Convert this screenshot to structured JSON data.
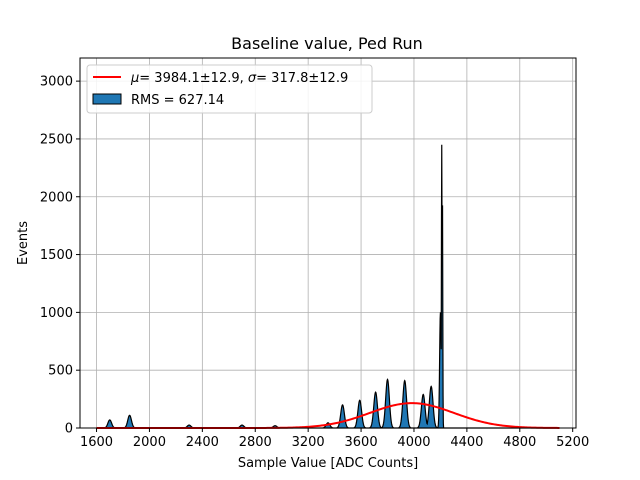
{
  "chart_data": {
    "type": "histogram",
    "title": "Baseline value, Ped Run",
    "xlabel": "Sample Value [ADC Counts]",
    "ylabel": "Events",
    "xlim": [
      1475,
      5225
    ],
    "ylim": [
      0,
      3200
    ],
    "x_ticks": [
      1600,
      2000,
      2400,
      2800,
      3200,
      3600,
      4000,
      4400,
      4800,
      5200
    ],
    "y_ticks": [
      0,
      500,
      1000,
      1500,
      2000,
      2500,
      3000
    ],
    "grid": true,
    "legend_position": "top-left",
    "histogram": {
      "name": "RMS = 627.14",
      "fill_color": "#1f77b4",
      "edge_color": "#000000",
      "x_range": [
        1600,
        5100
      ],
      "peaks": [
        {
          "x": 1700,
          "height": 70
        },
        {
          "x": 1850,
          "height": 110
        },
        {
          "x": 2300,
          "height": 25
        },
        {
          "x": 2700,
          "height": 25
        },
        {
          "x": 2950,
          "height": 20
        },
        {
          "x": 3350,
          "height": 45
        },
        {
          "x": 3460,
          "height": 200
        },
        {
          "x": 3590,
          "height": 240
        },
        {
          "x": 3710,
          "height": 310
        },
        {
          "x": 3800,
          "height": 420
        },
        {
          "x": 3930,
          "height": 410
        },
        {
          "x": 4070,
          "height": 290
        },
        {
          "x": 4130,
          "height": 360
        },
        {
          "x": 4200,
          "height": 1000
        },
        {
          "x": 4210,
          "height": 2450
        },
        {
          "x": 4215,
          "height": 2080
        }
      ]
    },
    "fit": {
      "name": "$\\mu = 3984.1 \\pm 12.9, \\sigma = 317.8 \\pm 12.9$",
      "type": "gaussian",
      "color": "#ff0000",
      "mu": 3984.1,
      "sigma": 317.8,
      "amplitude": 215,
      "x_range": [
        1600,
        5100
      ]
    },
    "legend": [
      {
        "kind": "line",
        "label_text": "= 3984.1±12.9, ",
        "label_sigma": "= 317.8±12.9",
        "color": "#ff0000"
      },
      {
        "kind": "patch",
        "label": "RMS = 627.14",
        "color": "#1f77b4"
      }
    ]
  }
}
